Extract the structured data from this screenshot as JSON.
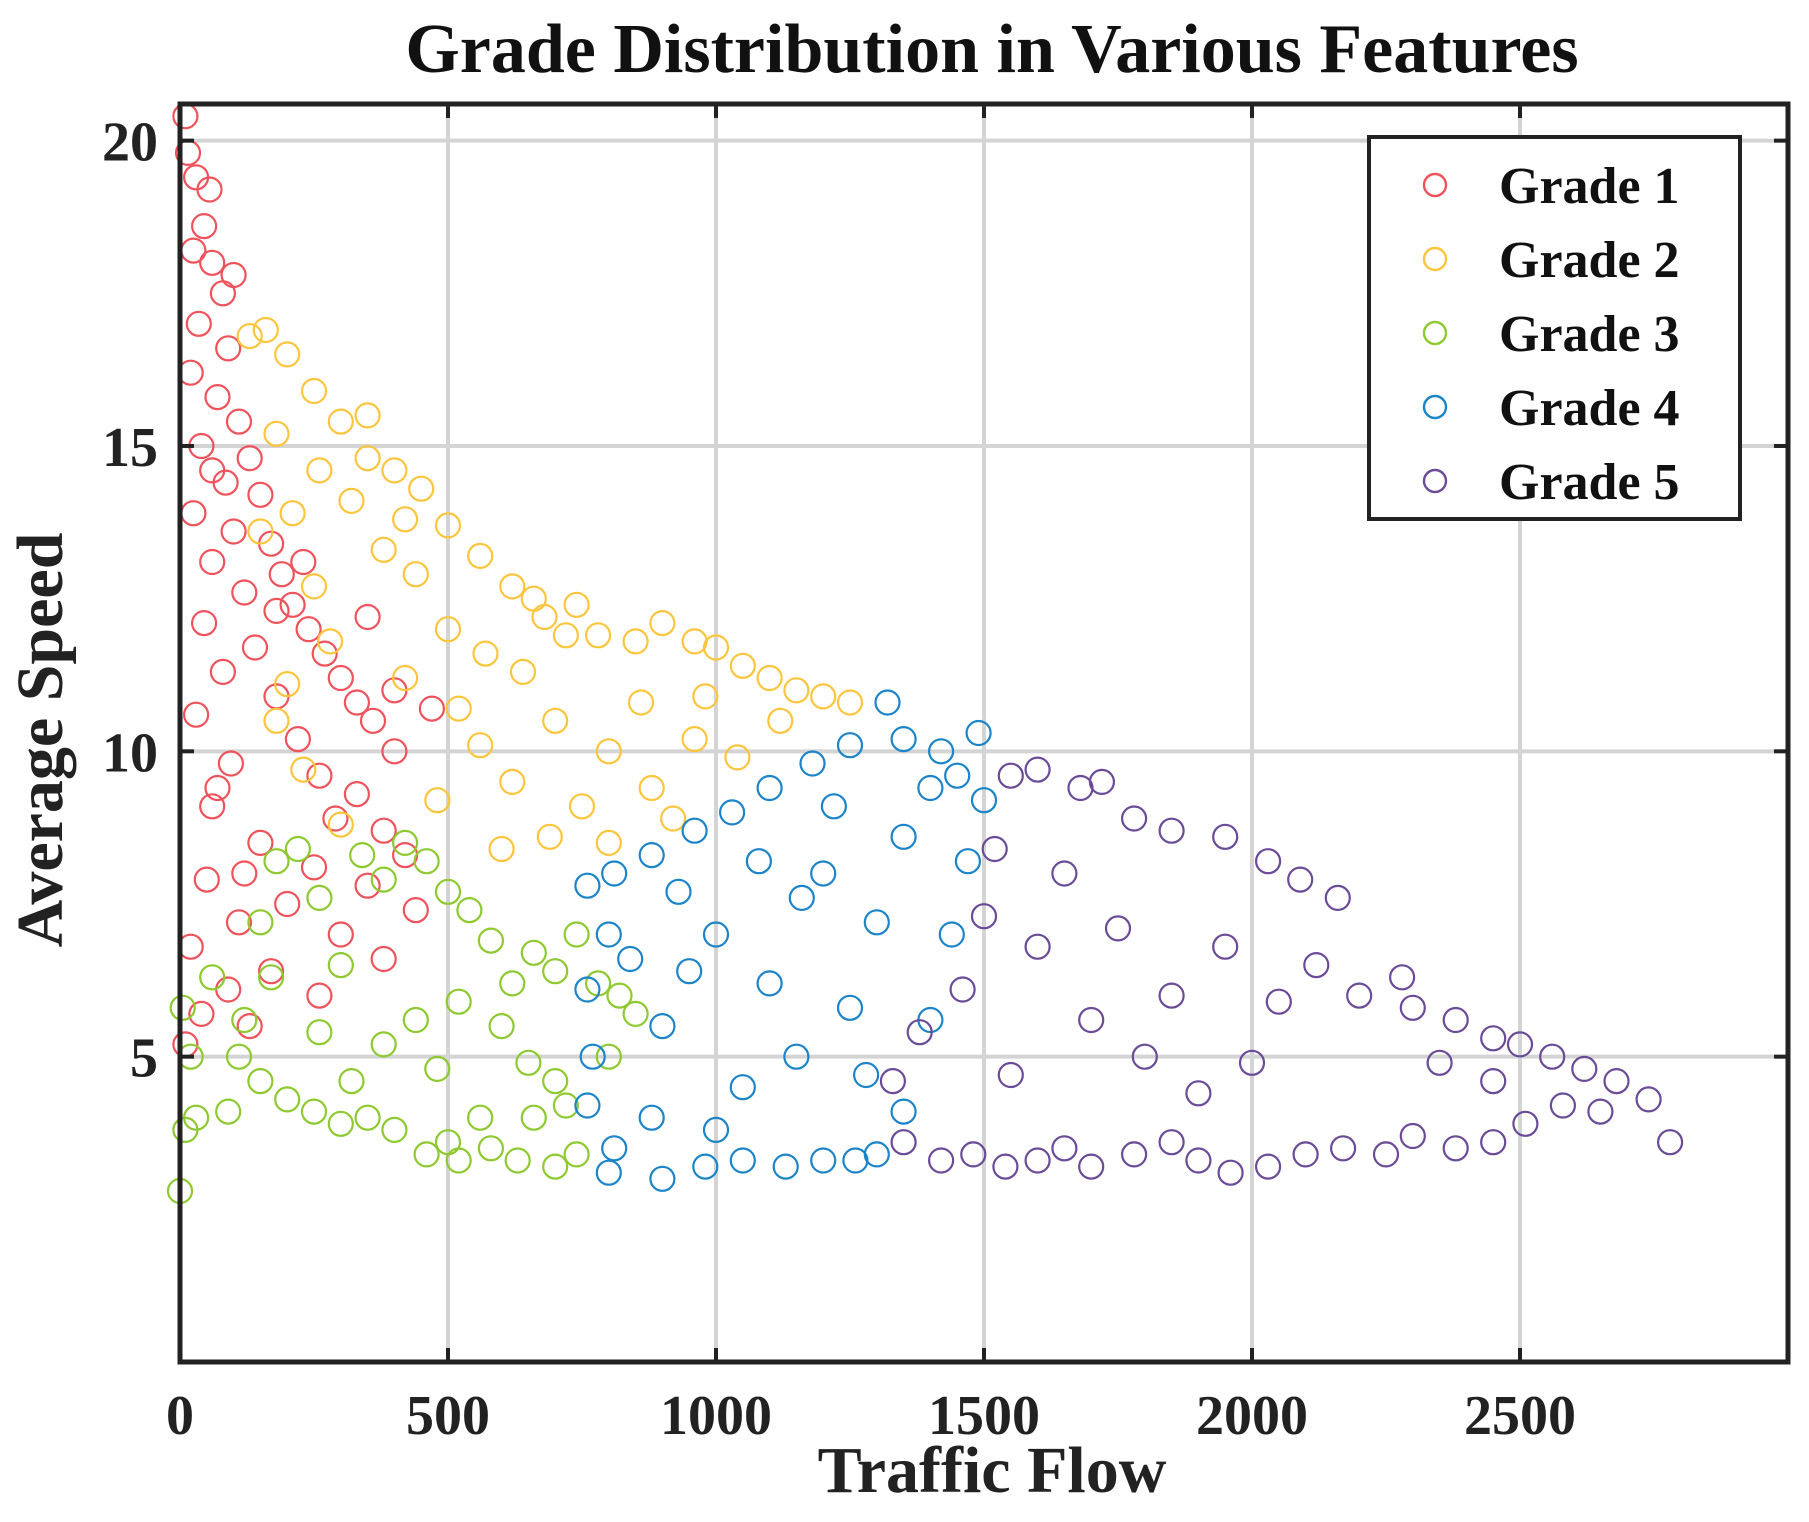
{
  "chart_data": {
    "type": "scatter",
    "title": "Grade Distribution in Various Features",
    "xlabel": "Traffic Flow",
    "ylabel": "Average Speed",
    "xlim": [
      0,
      3000
    ],
    "ylim": [
      0,
      20.6
    ],
    "xticks": [
      0,
      500,
      1000,
      1500,
      2000,
      2500
    ],
    "yticks": [
      5,
      10,
      15,
      20
    ],
    "grid": true,
    "legend_position": "top-right",
    "marker": "open-circle",
    "series": [
      {
        "name": "Grade 1",
        "color": "#f0525b",
        "points": [
          [
            10,
            20.4
          ],
          [
            15,
            19.8
          ],
          [
            30,
            19.4
          ],
          [
            55,
            19.2
          ],
          [
            45,
            18.6
          ],
          [
            60,
            18.0
          ],
          [
            80,
            17.5
          ],
          [
            35,
            17.0
          ],
          [
            90,
            16.6
          ],
          [
            20,
            16.2
          ],
          [
            70,
            15.8
          ],
          [
            110,
            15.4
          ],
          [
            40,
            15.0
          ],
          [
            130,
            14.8
          ],
          [
            85,
            14.4
          ],
          [
            150,
            14.2
          ],
          [
            25,
            13.9
          ],
          [
            100,
            13.6
          ],
          [
            170,
            13.4
          ],
          [
            60,
            13.1
          ],
          [
            190,
            12.9
          ],
          [
            120,
            12.6
          ],
          [
            210,
            12.4
          ],
          [
            45,
            12.1
          ],
          [
            240,
            12.0
          ],
          [
            140,
            11.7
          ],
          [
            270,
            11.6
          ],
          [
            80,
            11.3
          ],
          [
            300,
            11.2
          ],
          [
            180,
            10.9
          ],
          [
            330,
            10.8
          ],
          [
            30,
            10.6
          ],
          [
            360,
            10.5
          ],
          [
            220,
            10.2
          ],
          [
            400,
            10.0
          ],
          [
            95,
            9.8
          ],
          [
            260,
            9.6
          ],
          [
            330,
            9.3
          ],
          [
            60,
            9.1
          ],
          [
            290,
            8.9
          ],
          [
            380,
            8.7
          ],
          [
            150,
            8.5
          ],
          [
            420,
            8.3
          ],
          [
            250,
            8.1
          ],
          [
            50,
            7.9
          ],
          [
            350,
            7.8
          ],
          [
            200,
            7.5
          ],
          [
            440,
            7.4
          ],
          [
            110,
            7.2
          ],
          [
            300,
            7.0
          ],
          [
            20,
            6.8
          ],
          [
            380,
            6.6
          ],
          [
            170,
            6.4
          ],
          [
            90,
            6.1
          ],
          [
            260,
            6.0
          ],
          [
            40,
            5.7
          ],
          [
            130,
            5.5
          ],
          [
            10,
            5.2
          ],
          [
            70,
            9.4
          ],
          [
            180,
            12.3
          ],
          [
            230,
            13.1
          ],
          [
            400,
            11.0
          ],
          [
            470,
            10.7
          ],
          [
            350,
            12.2
          ],
          [
            120,
            8.0
          ],
          [
            60,
            14.6
          ],
          [
            25,
            18.2
          ],
          [
            100,
            17.8
          ]
        ]
      },
      {
        "name": "Grade 2",
        "color": "#fdc53c",
        "points": [
          [
            130,
            16.8
          ],
          [
            160,
            16.9
          ],
          [
            200,
            16.5
          ],
          [
            250,
            15.9
          ],
          [
            300,
            15.4
          ],
          [
            350,
            15.5
          ],
          [
            180,
            15.2
          ],
          [
            400,
            14.6
          ],
          [
            260,
            14.6
          ],
          [
            450,
            14.3
          ],
          [
            320,
            14.1
          ],
          [
            500,
            13.7
          ],
          [
            210,
            13.9
          ],
          [
            560,
            13.2
          ],
          [
            380,
            13.3
          ],
          [
            620,
            12.7
          ],
          [
            440,
            12.9
          ],
          [
            680,
            12.2
          ],
          [
            250,
            12.7
          ],
          [
            720,
            11.9
          ],
          [
            500,
            12.0
          ],
          [
            780,
            11.9
          ],
          [
            570,
            11.6
          ],
          [
            850,
            11.8
          ],
          [
            900,
            12.1
          ],
          [
            960,
            11.8
          ],
          [
            1000,
            11.7
          ],
          [
            640,
            11.3
          ],
          [
            1050,
            11.4
          ],
          [
            1100,
            11.2
          ],
          [
            860,
            10.8
          ],
          [
            1150,
            11.0
          ],
          [
            1200,
            10.9
          ],
          [
            1250,
            10.8
          ],
          [
            700,
            10.5
          ],
          [
            960,
            10.2
          ],
          [
            800,
            10.0
          ],
          [
            560,
            10.1
          ],
          [
            1040,
            9.9
          ],
          [
            620,
            9.5
          ],
          [
            880,
            9.4
          ],
          [
            750,
            9.1
          ],
          [
            480,
            9.2
          ],
          [
            920,
            8.9
          ],
          [
            690,
            8.6
          ],
          [
            600,
            8.4
          ],
          [
            800,
            8.5
          ],
          [
            180,
            10.5
          ],
          [
            230,
            9.7
          ],
          [
            300,
            8.8
          ],
          [
            420,
            11.2
          ],
          [
            520,
            10.7
          ],
          [
            660,
            12.5
          ],
          [
            1120,
            10.5
          ],
          [
            980,
            10.9
          ],
          [
            740,
            12.4
          ],
          [
            350,
            14.8
          ],
          [
            420,
            13.8
          ],
          [
            150,
            13.6
          ],
          [
            280,
            11.8
          ],
          [
            200,
            11.1
          ]
        ]
      },
      {
        "name": "Grade 3",
        "color": "#8dc92f",
        "points": [
          [
            0,
            2.8
          ],
          [
            10,
            3.8
          ],
          [
            30,
            4.0
          ],
          [
            20,
            5.0
          ],
          [
            5,
            5.8
          ],
          [
            60,
            6.3
          ],
          [
            120,
            5.6
          ],
          [
            150,
            7.2
          ],
          [
            180,
            8.2
          ],
          [
            220,
            8.4
          ],
          [
            260,
            7.6
          ],
          [
            300,
            6.5
          ],
          [
            340,
            8.3
          ],
          [
            380,
            7.9
          ],
          [
            420,
            8.5
          ],
          [
            460,
            8.2
          ],
          [
            500,
            7.7
          ],
          [
            540,
            7.4
          ],
          [
            580,
            6.9
          ],
          [
            620,
            6.2
          ],
          [
            660,
            6.7
          ],
          [
            700,
            6.4
          ],
          [
            740,
            7.0
          ],
          [
            780,
            6.2
          ],
          [
            820,
            6.0
          ],
          [
            850,
            5.7
          ],
          [
            600,
            5.5
          ],
          [
            650,
            4.9
          ],
          [
            700,
            4.6
          ],
          [
            720,
            4.2
          ],
          [
            560,
            4.0
          ],
          [
            500,
            3.6
          ],
          [
            460,
            3.4
          ],
          [
            520,
            3.3
          ],
          [
            580,
            3.5
          ],
          [
            630,
            3.3
          ],
          [
            700,
            3.2
          ],
          [
            740,
            3.4
          ],
          [
            400,
            3.8
          ],
          [
            350,
            4.0
          ],
          [
            300,
            3.9
          ],
          [
            250,
            4.1
          ],
          [
            200,
            4.3
          ],
          [
            150,
            4.6
          ],
          [
            110,
            5.0
          ],
          [
            90,
            4.1
          ],
          [
            380,
            5.2
          ],
          [
            440,
            5.6
          ],
          [
            520,
            5.9
          ],
          [
            260,
            5.4
          ],
          [
            320,
            4.6
          ],
          [
            660,
            4.0
          ],
          [
            800,
            5.0
          ],
          [
            480,
            4.8
          ],
          [
            170,
            6.3
          ]
        ]
      },
      {
        "name": "Grade 4",
        "color": "#1c84c8",
        "points": [
          [
            1320,
            10.8
          ],
          [
            1490,
            10.3
          ],
          [
            1420,
            10.0
          ],
          [
            1350,
            10.2
          ],
          [
            1250,
            10.1
          ],
          [
            1180,
            9.8
          ],
          [
            1100,
            9.4
          ],
          [
            1030,
            9.0
          ],
          [
            960,
            8.7
          ],
          [
            880,
            8.3
          ],
          [
            810,
            8.0
          ],
          [
            760,
            7.8
          ],
          [
            800,
            7.0
          ],
          [
            760,
            6.1
          ],
          [
            770,
            5.0
          ],
          [
            760,
            4.2
          ],
          [
            810,
            3.5
          ],
          [
            800,
            3.1
          ],
          [
            900,
            3.0
          ],
          [
            980,
            3.2
          ],
          [
            1050,
            3.3
          ],
          [
            1130,
            3.2
          ],
          [
            1200,
            3.3
          ],
          [
            1260,
            3.3
          ],
          [
            1300,
            3.4
          ],
          [
            1350,
            4.1
          ],
          [
            1400,
            5.6
          ],
          [
            1440,
            7.0
          ],
          [
            1470,
            8.2
          ],
          [
            1500,
            9.2
          ],
          [
            1450,
            9.6
          ],
          [
            1000,
            7.0
          ],
          [
            1100,
            6.2
          ],
          [
            900,
            5.5
          ],
          [
            1200,
            8.0
          ],
          [
            1300,
            7.2
          ],
          [
            1050,
            4.5
          ],
          [
            950,
            6.4
          ],
          [
            1150,
            5.0
          ],
          [
            1250,
            5.8
          ],
          [
            1350,
            8.6
          ],
          [
            880,
            4.0
          ],
          [
            1000,
            3.8
          ],
          [
            1400,
            9.4
          ],
          [
            1220,
            9.1
          ],
          [
            1080,
            8.2
          ],
          [
            930,
            7.7
          ],
          [
            1160,
            7.6
          ],
          [
            1280,
            4.7
          ],
          [
            840,
            6.6
          ]
        ]
      },
      {
        "name": "Grade 5",
        "color": "#6b4b97",
        "points": [
          [
            1550,
            9.6
          ],
          [
            1600,
            9.7
          ],
          [
            1680,
            9.4
          ],
          [
            1720,
            9.5
          ],
          [
            1780,
            8.9
          ],
          [
            1850,
            8.7
          ],
          [
            1950,
            8.6
          ],
          [
            2030,
            8.2
          ],
          [
            2090,
            7.9
          ],
          [
            2160,
            7.6
          ],
          [
            2120,
            6.5
          ],
          [
            2280,
            6.3
          ],
          [
            2200,
            6.0
          ],
          [
            2300,
            5.8
          ],
          [
            2380,
            5.6
          ],
          [
            2450,
            5.3
          ],
          [
            2500,
            5.2
          ],
          [
            2560,
            5.0
          ],
          [
            2620,
            4.8
          ],
          [
            2680,
            4.6
          ],
          [
            2740,
            4.3
          ],
          [
            2650,
            4.1
          ],
          [
            2580,
            4.2
          ],
          [
            2510,
            3.9
          ],
          [
            2450,
            3.6
          ],
          [
            2380,
            3.5
          ],
          [
            2300,
            3.7
          ],
          [
            2250,
            3.4
          ],
          [
            2170,
            3.5
          ],
          [
            2100,
            3.4
          ],
          [
            2030,
            3.2
          ],
          [
            1960,
            3.1
          ],
          [
            1900,
            3.3
          ],
          [
            1850,
            3.6
          ],
          [
            1780,
            3.4
          ],
          [
            1700,
            3.2
          ],
          [
            1650,
            3.5
          ],
          [
            1600,
            3.3
          ],
          [
            1540,
            3.2
          ],
          [
            1480,
            3.4
          ],
          [
            1420,
            3.3
          ],
          [
            1350,
            3.6
          ],
          [
            1330,
            4.6
          ],
          [
            1380,
            5.4
          ],
          [
            1460,
            6.1
          ],
          [
            1500,
            7.3
          ],
          [
            1520,
            8.4
          ],
          [
            1600,
            6.8
          ],
          [
            1700,
            5.6
          ],
          [
            1800,
            5.0
          ],
          [
            1900,
            4.4
          ],
          [
            2000,
            4.9
          ],
          [
            1750,
            7.1
          ],
          [
            1850,
            6.0
          ],
          [
            1650,
            8.0
          ],
          [
            2780,
            3.6
          ],
          [
            2350,
            4.9
          ],
          [
            2050,
            5.9
          ],
          [
            1950,
            6.8
          ],
          [
            1550,
            4.7
          ],
          [
            2450,
            4.6
          ]
        ]
      }
    ]
  }
}
